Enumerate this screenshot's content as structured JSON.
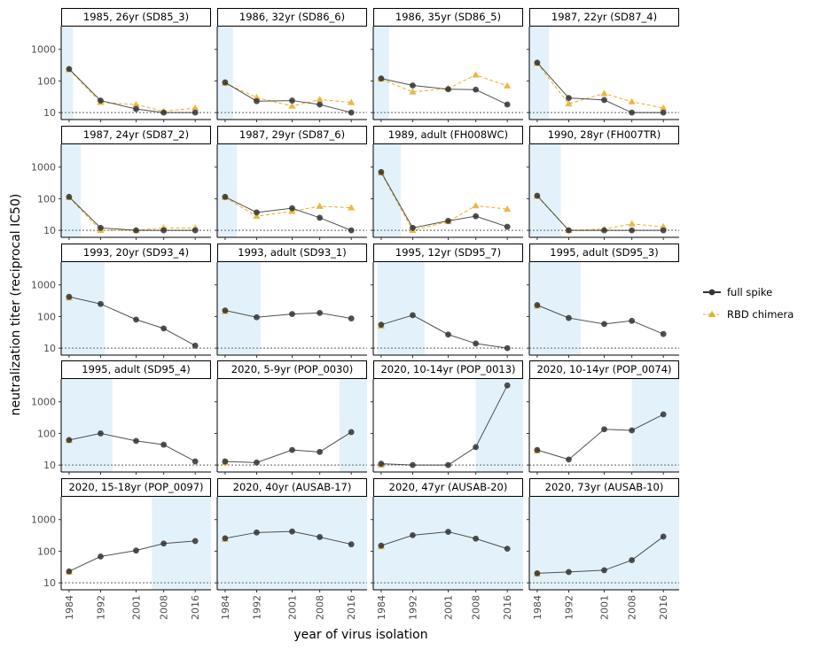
{
  "chart_data": {
    "type": "line",
    "xlabel": "year of virus isolation",
    "ylabel": "neutralization titer (reciprocal IC50)",
    "x_ticks": [
      1984,
      1992,
      2001,
      2008,
      2016
    ],
    "y_ticks": [
      10,
      100,
      1000
    ],
    "y_scale": "log",
    "xlim": [
      1982,
      2020
    ],
    "ylim_log10": [
      0.78,
      3.72
    ],
    "detection_limit": 10,
    "legend": {
      "placement": "right",
      "entries": [
        {
          "name": "full spike",
          "color": "#333333",
          "marker": "circle",
          "linestyle": "solid"
        },
        {
          "name": "RBD chimera",
          "color": "#e8ae2a",
          "marker": "triangle",
          "linestyle": "dashed"
        }
      ]
    },
    "colors": {
      "shade": "#e3f2fa",
      "full_spike": "#333333",
      "rbd": "#e8ae2a",
      "limit_line": "#7f7f7f"
    },
    "panels": [
      {
        "title": "1985, 26yr (SD85_3)",
        "shade": [
          1982,
          1985
        ],
        "full": [
          240,
          24,
          13,
          10,
          10
        ],
        "rbd": [
          230,
          21,
          18,
          11,
          14
        ]
      },
      {
        "title": "1986, 32yr (SD86_6)",
        "shade": [
          1982,
          1986
        ],
        "full": [
          90,
          23,
          24,
          18,
          10
        ],
        "rbd": [
          85,
          30,
          16,
          26,
          21
        ]
      },
      {
        "title": "1986, 35yr (SD86_5)",
        "shade": [
          1982,
          1986
        ],
        "full": [
          120,
          72,
          55,
          53,
          18
        ],
        "rbd": [
          115,
          45,
          58,
          155,
          70
        ]
      },
      {
        "title": "1987, 22yr (SD87_4)",
        "shade": [
          1982,
          1987
        ],
        "full": [
          380,
          29,
          25,
          10,
          10
        ],
        "rbd": [
          360,
          19,
          40,
          22,
          14
        ]
      },
      {
        "title": "1987, 24yr (SD87_2)",
        "shade": [
          1982,
          1987
        ],
        "full": [
          115,
          12,
          10,
          10,
          10
        ],
        "rbd": [
          110,
          10,
          10,
          12,
          12
        ]
      },
      {
        "title": "1987, 29yr (SD87_6)",
        "shade": [
          1982,
          1987
        ],
        "full": [
          115,
          37,
          50,
          25,
          10
        ],
        "rbd": [
          110,
          28,
          40,
          58,
          52
        ]
      },
      {
        "title": "1989, adult (FH008WC)",
        "shade": [
          1982,
          1989
        ],
        "full": [
          700,
          12,
          20,
          28,
          13
        ],
        "rbd": [
          660,
          10,
          19,
          60,
          47
        ]
      },
      {
        "title": "1990, 28yr (FH007TR)",
        "shade": [
          1982,
          1990
        ],
        "full": [
          125,
          10,
          10,
          10,
          10
        ],
        "rbd": [
          120,
          10,
          11,
          16,
          13
        ]
      },
      {
        "title": "1993, 20yr (SD93_4)",
        "shade": [
          1982,
          1993
        ],
        "full": [
          420,
          250,
          80,
          42,
          12
        ],
        "rbd": [
          390,
          null,
          null,
          null,
          null
        ]
      },
      {
        "title": "1993, adult (SD93_1)",
        "shade": [
          1982,
          1993
        ],
        "full": [
          155,
          95,
          120,
          130,
          87
        ],
        "rbd": [
          145,
          null,
          null,
          null,
          null
        ]
      },
      {
        "title": "1995, 12yr (SD95_7)",
        "shade": [
          1983,
          1995
        ],
        "full": [
          55,
          110,
          27,
          14,
          10
        ],
        "rbd": [
          50,
          null,
          null,
          null,
          null
        ]
      },
      {
        "title": "1995, adult (SD95_3)",
        "shade": [
          1982,
          1995
        ],
        "full": [
          230,
          90,
          58,
          73,
          28
        ],
        "rbd": [
          215,
          null,
          null,
          null,
          null
        ]
      },
      {
        "title": "1995, adult (SD95_4)",
        "shade": [
          1982,
          1995
        ],
        "full": [
          62,
          100,
          58,
          44,
          13
        ],
        "rbd": [
          60,
          null,
          null,
          null,
          null
        ]
      },
      {
        "title": "2020, 5-9yr (POP_0030)",
        "shade": [
          2013,
          2020
        ],
        "full": [
          13,
          12,
          30,
          26,
          110
        ],
        "rbd": [
          12,
          null,
          null,
          null,
          null
        ]
      },
      {
        "title": "2020, 10-14yr (POP_0013)",
        "shade": [
          2008,
          2020
        ],
        "full": [
          11,
          10,
          10,
          37,
          3300
        ],
        "rbd": [
          10,
          null,
          null,
          null,
          null
        ]
      },
      {
        "title": "2020, 10-14yr (POP_0074)",
        "shade": [
          2008,
          2020
        ],
        "full": [
          30,
          15,
          135,
          125,
          400
        ],
        "rbd": [
          28,
          null,
          null,
          null,
          null
        ]
      },
      {
        "title": "2020, 15-18yr (POP_0097)",
        "shade": [
          2005,
          2020
        ],
        "full": [
          23,
          68,
          105,
          175,
          210
        ],
        "rbd": [
          22,
          null,
          null,
          null,
          null
        ]
      },
      {
        "title": "2020, 40yr (AUSAB-17)",
        "shade": [
          1982,
          2020
        ],
        "full": [
          255,
          390,
          420,
          280,
          165
        ],
        "rbd": [
          240,
          null,
          null,
          null,
          null
        ]
      },
      {
        "title": "2020, 47yr (AUSAB-20)",
        "shade": [
          1982,
          2020
        ],
        "full": [
          150,
          320,
          410,
          250,
          120
        ],
        "rbd": [
          140,
          null,
          null,
          null,
          null
        ]
      },
      {
        "title": "2020, 73yr (AUSAB-10)",
        "shade": [
          1982,
          2020
        ],
        "full": [
          20,
          22,
          25,
          52,
          290
        ],
        "rbd": [
          19,
          null,
          null,
          null,
          null
        ]
      }
    ]
  }
}
